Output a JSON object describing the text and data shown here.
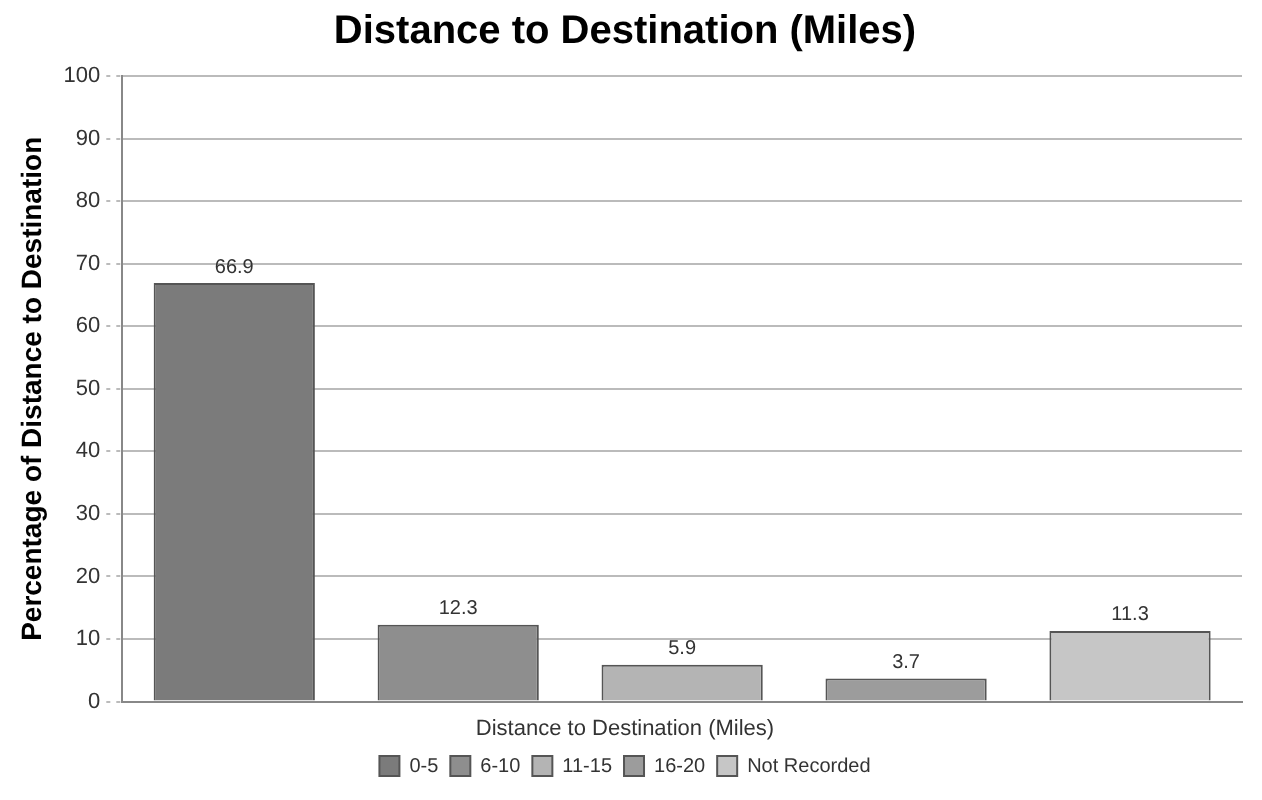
{
  "chart_data": {
    "type": "bar",
    "title": "Distance to Destination (Miles)",
    "ylabel": "Percentage of Distance to Destination",
    "legend_title": "Distance to Destination (Miles)",
    "categories": [
      null,
      null,
      null,
      null,
      null
    ],
    "series": [
      {
        "name": "0-5",
        "color": "#7b7b7b",
        "values": [
          66.9,
          null,
          null,
          null,
          null
        ]
      },
      {
        "name": "6-10",
        "color": "#8e8e8e",
        "values": [
          null,
          12.3,
          null,
          null,
          null
        ]
      },
      {
        "name": "11-15",
        "color": "#b4b4b4",
        "values": [
          null,
          null,
          5.9,
          null,
          null
        ]
      },
      {
        "name": "16-20",
        "color": "#9c9c9c",
        "values": [
          null,
          null,
          null,
          3.7,
          null
        ]
      },
      {
        "name": "Not Recorded",
        "color": "#c6c6c6",
        "values": [
          null,
          null,
          null,
          null,
          11.3
        ]
      }
    ],
    "ylim": [
      0,
      100
    ],
    "yticks": [
      0,
      10,
      20,
      30,
      40,
      50,
      60,
      70,
      80,
      90,
      100
    ],
    "grid": "y",
    "legend": "bottom",
    "data_labels": true
  }
}
